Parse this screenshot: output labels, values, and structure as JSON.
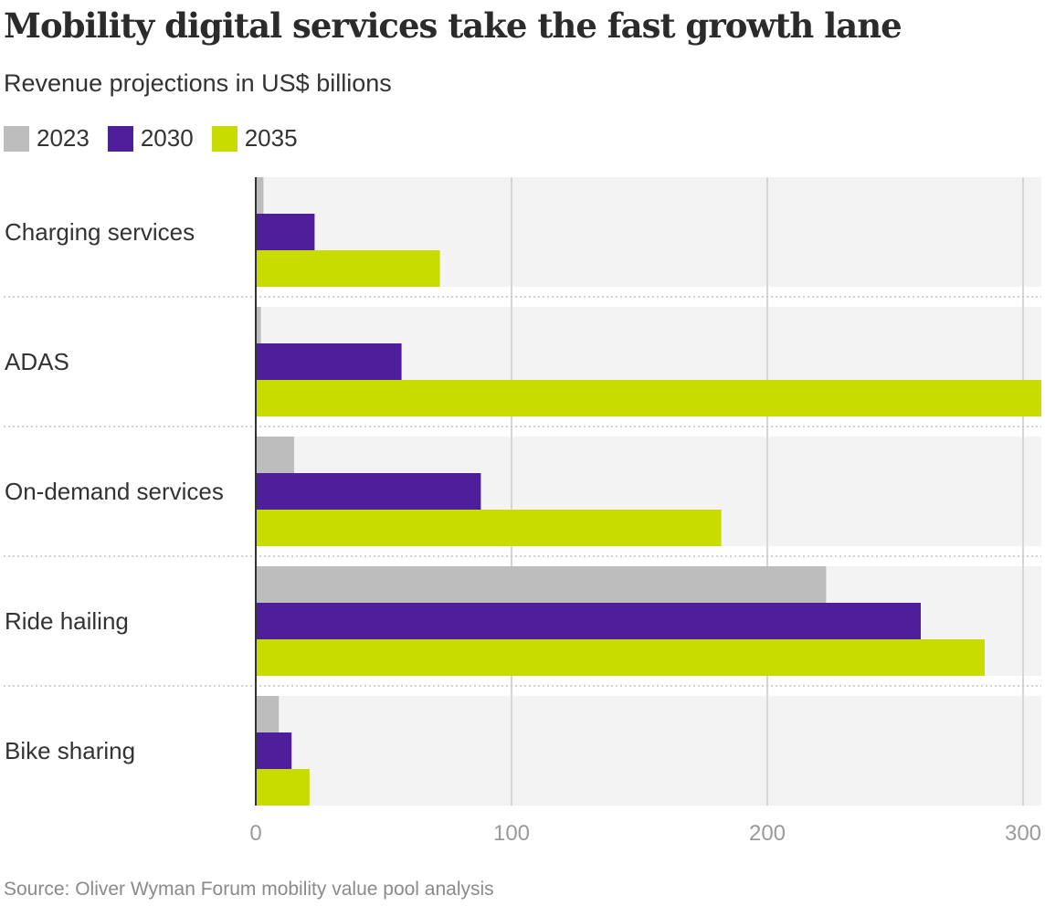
{
  "title": "Mobility digital services take the fast growth lane",
  "subtitle": "Revenue projections in US$ billions",
  "source": "Source: Oliver Wyman Forum mobility value pool analysis",
  "colors": {
    "2023": "#bdbdbd",
    "2030": "#4f1f9b",
    "2035": "#c8dc00",
    "band": "#f3f3f3",
    "grid": "#d6d6d6"
  },
  "chart_data": {
    "type": "bar",
    "orientation": "horizontal",
    "title": "Mobility digital services take the fast growth lane",
    "subtitle": "Revenue projections in US$ billions",
    "categories": [
      "Charging services",
      "ADAS",
      "On-demand services",
      "Ride hailing",
      "Bike sharing"
    ],
    "series": [
      {
        "name": "2023",
        "values": [
          3,
          2,
          15,
          223,
          9
        ]
      },
      {
        "name": "2030",
        "values": [
          23,
          57,
          88,
          260,
          14
        ]
      },
      {
        "name": "2035",
        "values": [
          72,
          310,
          182,
          285,
          21
        ]
      }
    ],
    "xticks": [
      0,
      100,
      200,
      300
    ],
    "xlim": [
      0,
      310
    ],
    "xlabel": "",
    "ylabel": "",
    "grid": true,
    "legend": "top-left"
  }
}
